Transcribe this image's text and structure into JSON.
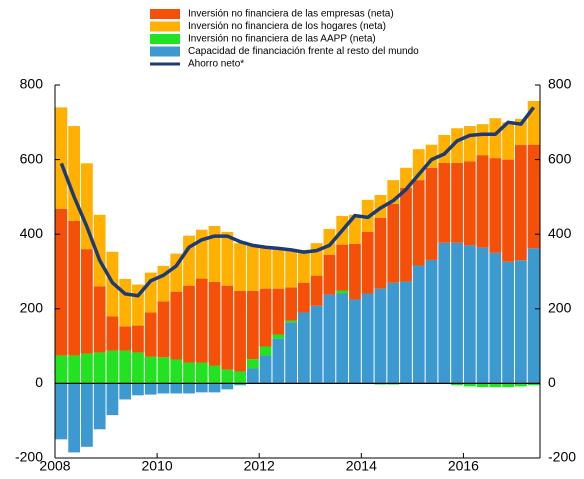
{
  "chart_data": {
    "type": "bar",
    "categories": [
      "2008",
      null,
      null,
      null,
      null,
      null,
      null,
      null,
      "2010",
      null,
      null,
      null,
      null,
      null,
      null,
      null,
      "2012",
      null,
      null,
      null,
      null,
      null,
      null,
      null,
      "2014",
      null,
      null,
      null,
      null,
      null,
      null,
      null,
      "2016",
      null,
      null,
      null,
      null,
      null
    ],
    "series": [
      {
        "name": "Inversión no financiera de las empresas (neta)",
        "type": "bar",
        "color": "#f5500a",
        "values": [
          393,
          361,
          280,
          177,
          92,
          65,
          72,
          118,
          150,
          182,
          206,
          225,
          224,
          225,
          216,
          183,
          155,
          123,
          89,
          80,
          81,
          107,
          123,
          149,
          165,
          190,
          211,
          251,
          229,
          247,
          214,
          214,
          225,
          248,
          254,
          274,
          309,
          278
        ]
      },
      {
        "name": "Inversión no financiera de los hogares (neta)",
        "type": "bar",
        "color": "#ffb000",
        "values": [
          272,
          254,
          230,
          192,
          173,
          127,
          110,
          107,
          95,
          102,
          134,
          131,
          150,
          144,
          128,
          121,
          112,
          110,
          99,
          88,
          87,
          69,
          77,
          78,
          86,
          61,
          64,
          54,
          83,
          62,
          75,
          93,
          95,
          83,
          107,
          100,
          70,
          117
        ]
      },
      {
        "name": "Inversión no financiera de las AAPP (neta)",
        "type": "bar",
        "color": "#22e222",
        "values": [
          75,
          75,
          80,
          83,
          88,
          88,
          83,
          72,
          70,
          64,
          56,
          56,
          48,
          37,
          32,
          25,
          24,
          11,
          5,
          0,
          0,
          0,
          8,
          0,
          0,
          -3,
          -3,
          0,
          0,
          0,
          0,
          -5,
          -8,
          -10,
          -10,
          -10,
          -8,
          -5
        ]
      },
      {
        "name": "Capacidad de financiación frente al resto del mundo",
        "type": "bar",
        "color": "#3d9ad1",
        "values": [
          -150,
          -185,
          -170,
          -123,
          -85,
          -43,
          -32,
          -30,
          -27,
          -27,
          -27,
          -24,
          -24,
          -16,
          -5,
          40,
          75,
          120,
          163,
          190,
          208,
          238,
          241,
          225,
          241,
          254,
          270,
          273,
          316,
          331,
          377,
          377,
          370,
          364,
          350,
          326,
          330,
          362
        ]
      },
      {
        "name": "Ahorro neto*",
        "type": "line",
        "color": "#1b3a78",
        "values": [
          590,
          500,
          420,
          330,
          270,
          240,
          235,
          275,
          290,
          315,
          365,
          385,
          395,
          395,
          380,
          370,
          365,
          362,
          358,
          352,
          356,
          370,
          410,
          450,
          445,
          470,
          490,
          520,
          560,
          600,
          615,
          650,
          665,
          668,
          668,
          700,
          695,
          740
        ]
      }
    ],
    "ylim": [
      -200,
      800
    ],
    "yticks": [
      -200,
      0,
      200,
      400,
      600,
      800
    ],
    "y2lim": [
      -200,
      800
    ],
    "y2ticks": [
      -200,
      0,
      200,
      400,
      600,
      800
    ]
  }
}
